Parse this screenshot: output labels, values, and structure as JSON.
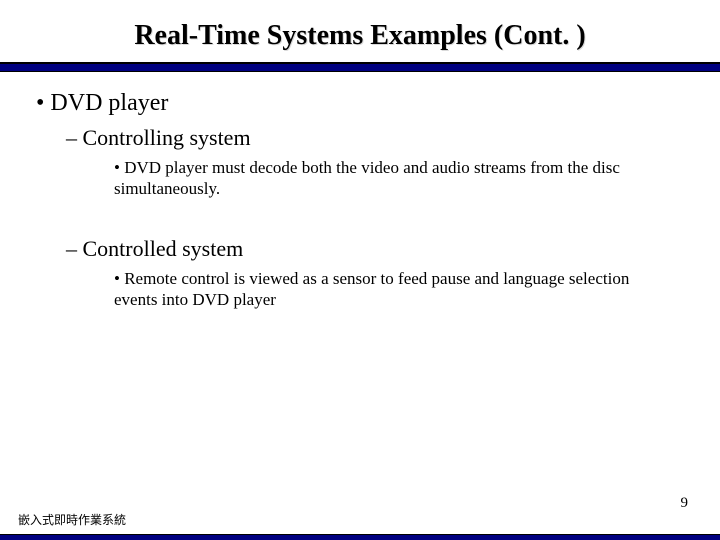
{
  "title": "Real-Time Systems Examples (Cont. )",
  "bullets": {
    "l1": "•  DVD player",
    "l2a": "–  Controlling system",
    "l3a": "•  DVD player must decode both the video and audio streams from the disc simultaneously.",
    "l2b": "–  Controlled system",
    "l3b": "•  Remote control is viewed as a sensor to feed pause and language selection events into DVD player"
  },
  "footer": {
    "page": "9",
    "label": "嵌入式即時作業系統"
  },
  "colors": {
    "bar": "#000080",
    "text": "#000000",
    "bg": "#ffffff"
  }
}
